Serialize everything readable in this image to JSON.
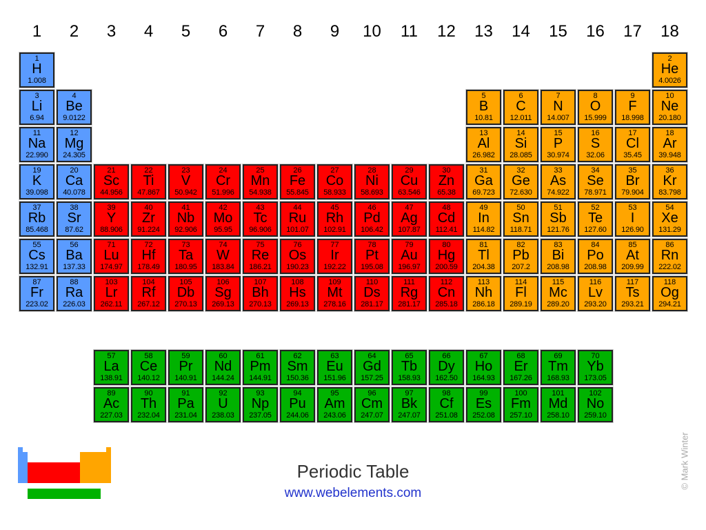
{
  "group_headers": [
    "1",
    "2",
    "3",
    "4",
    "5",
    "6",
    "7",
    "8",
    "9",
    "10",
    "11",
    "12",
    "13",
    "14",
    "15",
    "16",
    "17",
    "18"
  ],
  "colors": {
    "s_block": "#5a9bff",
    "d_block": "#ff0000",
    "p_block": "#ffa500",
    "f_block": "#00b200"
  },
  "elements": [
    {
      "n": "1",
      "s": "H",
      "m": "1.008"
    },
    {
      "n": "2",
      "s": "He",
      "m": "4.0026"
    },
    {
      "n": "3",
      "s": "Li",
      "m": "6.94"
    },
    {
      "n": "4",
      "s": "Be",
      "m": "9.0122"
    },
    {
      "n": "5",
      "s": "B",
      "m": "10.81"
    },
    {
      "n": "6",
      "s": "C",
      "m": "12.011"
    },
    {
      "n": "7",
      "s": "N",
      "m": "14.007"
    },
    {
      "n": "8",
      "s": "O",
      "m": "15.999"
    },
    {
      "n": "9",
      "s": "F",
      "m": "18.998"
    },
    {
      "n": "10",
      "s": "Ne",
      "m": "20.180"
    },
    {
      "n": "11",
      "s": "Na",
      "m": "22.990"
    },
    {
      "n": "12",
      "s": "Mg",
      "m": "24.305"
    },
    {
      "n": "13",
      "s": "Al",
      "m": "26.982"
    },
    {
      "n": "14",
      "s": "Si",
      "m": "28.085"
    },
    {
      "n": "15",
      "s": "P",
      "m": "30.974"
    },
    {
      "n": "16",
      "s": "S",
      "m": "32.06"
    },
    {
      "n": "17",
      "s": "Cl",
      "m": "35.45"
    },
    {
      "n": "18",
      "s": "Ar",
      "m": "39.948"
    },
    {
      "n": "19",
      "s": "K",
      "m": "39.098"
    },
    {
      "n": "20",
      "s": "Ca",
      "m": "40.078"
    },
    {
      "n": "21",
      "s": "Sc",
      "m": "44.956"
    },
    {
      "n": "22",
      "s": "Ti",
      "m": "47.867"
    },
    {
      "n": "23",
      "s": "V",
      "m": "50.942"
    },
    {
      "n": "24",
      "s": "Cr",
      "m": "51.996"
    },
    {
      "n": "25",
      "s": "Mn",
      "m": "54.938"
    },
    {
      "n": "26",
      "s": "Fe",
      "m": "55.845"
    },
    {
      "n": "27",
      "s": "Co",
      "m": "58.933"
    },
    {
      "n": "28",
      "s": "Ni",
      "m": "58.693"
    },
    {
      "n": "29",
      "s": "Cu",
      "m": "63.546"
    },
    {
      "n": "30",
      "s": "Zn",
      "m": "65.38"
    },
    {
      "n": "31",
      "s": "Ga",
      "m": "69.723"
    },
    {
      "n": "32",
      "s": "Ge",
      "m": "72.630"
    },
    {
      "n": "33",
      "s": "As",
      "m": "74.922"
    },
    {
      "n": "34",
      "s": "Se",
      "m": "78.971"
    },
    {
      "n": "35",
      "s": "Br",
      "m": "79.904"
    },
    {
      "n": "36",
      "s": "Kr",
      "m": "83.798"
    },
    {
      "n": "37",
      "s": "Rb",
      "m": "85.468"
    },
    {
      "n": "38",
      "s": "Sr",
      "m": "87.62"
    },
    {
      "n": "39",
      "s": "Y",
      "m": "88.906"
    },
    {
      "n": "40",
      "s": "Zr",
      "m": "91.224"
    },
    {
      "n": "41",
      "s": "Nb",
      "m": "92.906"
    },
    {
      "n": "42",
      "s": "Mo",
      "m": "95.95"
    },
    {
      "n": "43",
      "s": "Tc",
      "m": "96.906"
    },
    {
      "n": "44",
      "s": "Ru",
      "m": "101.07"
    },
    {
      "n": "45",
      "s": "Rh",
      "m": "102.91"
    },
    {
      "n": "46",
      "s": "Pd",
      "m": "106.42"
    },
    {
      "n": "47",
      "s": "Ag",
      "m": "107.87"
    },
    {
      "n": "48",
      "s": "Cd",
      "m": "112.41"
    },
    {
      "n": "49",
      "s": "In",
      "m": "114.82"
    },
    {
      "n": "50",
      "s": "Sn",
      "m": "118.71"
    },
    {
      "n": "51",
      "s": "Sb",
      "m": "121.76"
    },
    {
      "n": "52",
      "s": "Te",
      "m": "127.60"
    },
    {
      "n": "53",
      "s": "I",
      "m": "126.90"
    },
    {
      "n": "54",
      "s": "Xe",
      "m": "131.29"
    },
    {
      "n": "55",
      "s": "Cs",
      "m": "132.91"
    },
    {
      "n": "56",
      "s": "Ba",
      "m": "137.33"
    },
    {
      "n": "57",
      "s": "La",
      "m": "138.91"
    },
    {
      "n": "58",
      "s": "Ce",
      "m": "140.12"
    },
    {
      "n": "59",
      "s": "Pr",
      "m": "140.91"
    },
    {
      "n": "60",
      "s": "Nd",
      "m": "144.24"
    },
    {
      "n": "61",
      "s": "Pm",
      "m": "144.91"
    },
    {
      "n": "62",
      "s": "Sm",
      "m": "150.36"
    },
    {
      "n": "63",
      "s": "Eu",
      "m": "151.96"
    },
    {
      "n": "64",
      "s": "Gd",
      "m": "157.25"
    },
    {
      "n": "65",
      "s": "Tb",
      "m": "158.93"
    },
    {
      "n": "66",
      "s": "Dy",
      "m": "162.50"
    },
    {
      "n": "67",
      "s": "Ho",
      "m": "164.93"
    },
    {
      "n": "68",
      "s": "Er",
      "m": "167.26"
    },
    {
      "n": "69",
      "s": "Tm",
      "m": "168.93"
    },
    {
      "n": "70",
      "s": "Yb",
      "m": "173.05"
    },
    {
      "n": "71",
      "s": "Lu",
      "m": "174.97"
    },
    {
      "n": "72",
      "s": "Hf",
      "m": "178.49"
    },
    {
      "n": "73",
      "s": "Ta",
      "m": "180.95"
    },
    {
      "n": "74",
      "s": "W",
      "m": "183.84"
    },
    {
      "n": "75",
      "s": "Re",
      "m": "186.21"
    },
    {
      "n": "76",
      "s": "Os",
      "m": "190.23"
    },
    {
      "n": "77",
      "s": "Ir",
      "m": "192.22"
    },
    {
      "n": "78",
      "s": "Pt",
      "m": "195.08"
    },
    {
      "n": "79",
      "s": "Au",
      "m": "196.97"
    },
    {
      "n": "80",
      "s": "Hg",
      "m": "200.59"
    },
    {
      "n": "81",
      "s": "Tl",
      "m": "204.38"
    },
    {
      "n": "82",
      "s": "Pb",
      "m": "207.2"
    },
    {
      "n": "83",
      "s": "Bi",
      "m": "208.98"
    },
    {
      "n": "84",
      "s": "Po",
      "m": "208.98"
    },
    {
      "n": "85",
      "s": "At",
      "m": "209.99"
    },
    {
      "n": "86",
      "s": "Rn",
      "m": "222.02"
    },
    {
      "n": "87",
      "s": "Fr",
      "m": "223.02"
    },
    {
      "n": "88",
      "s": "Ra",
      "m": "226.03"
    },
    {
      "n": "89",
      "s": "Ac",
      "m": "227.03"
    },
    {
      "n": "90",
      "s": "Th",
      "m": "232.04"
    },
    {
      "n": "91",
      "s": "Pa",
      "m": "231.04"
    },
    {
      "n": "92",
      "s": "U",
      "m": "238.03"
    },
    {
      "n": "93",
      "s": "Np",
      "m": "237.05"
    },
    {
      "n": "94",
      "s": "Pu",
      "m": "244.06"
    },
    {
      "n": "95",
      "s": "Am",
      "m": "243.06"
    },
    {
      "n": "96",
      "s": "Cm",
      "m": "247.07"
    },
    {
      "n": "97",
      "s": "Bk",
      "m": "247.07"
    },
    {
      "n": "98",
      "s": "Cf",
      "m": "251.08"
    },
    {
      "n": "99",
      "s": "Es",
      "m": "252.08"
    },
    {
      "n": "100",
      "s": "Fm",
      "m": "257.10"
    },
    {
      "n": "101",
      "s": "Md",
      "m": "258.10"
    },
    {
      "n": "102",
      "s": "No",
      "m": "259.10"
    },
    {
      "n": "103",
      "s": "Lr",
      "m": "262.11"
    },
    {
      "n": "104",
      "s": "Rf",
      "m": "267.12"
    },
    {
      "n": "105",
      "s": "Db",
      "m": "270.13"
    },
    {
      "n": "106",
      "s": "Sg",
      "m": "269.13"
    },
    {
      "n": "107",
      "s": "Bh",
      "m": "270.13"
    },
    {
      "n": "108",
      "s": "Hs",
      "m": "269.13"
    },
    {
      "n": "109",
      "s": "Mt",
      "m": "278.16"
    },
    {
      "n": "110",
      "s": "Ds",
      "m": "281.17"
    },
    {
      "n": "111",
      "s": "Rg",
      "m": "281.17"
    },
    {
      "n": "112",
      "s": "Cn",
      "m": "285.18"
    },
    {
      "n": "113",
      "s": "Nh",
      "m": "286.18"
    },
    {
      "n": "114",
      "s": "Fl",
      "m": "289.19"
    },
    {
      "n": "115",
      "s": "Mc",
      "m": "289.20"
    },
    {
      "n": "116",
      "s": "Lv",
      "m": "293.20"
    },
    {
      "n": "117",
      "s": "Ts",
      "m": "293.21"
    },
    {
      "n": "118",
      "s": "Og",
      "m": "294.21"
    }
  ],
  "footer": {
    "title": "Periodic Table",
    "url": "www.webelements.com",
    "credit": "© Mark Winter"
  }
}
